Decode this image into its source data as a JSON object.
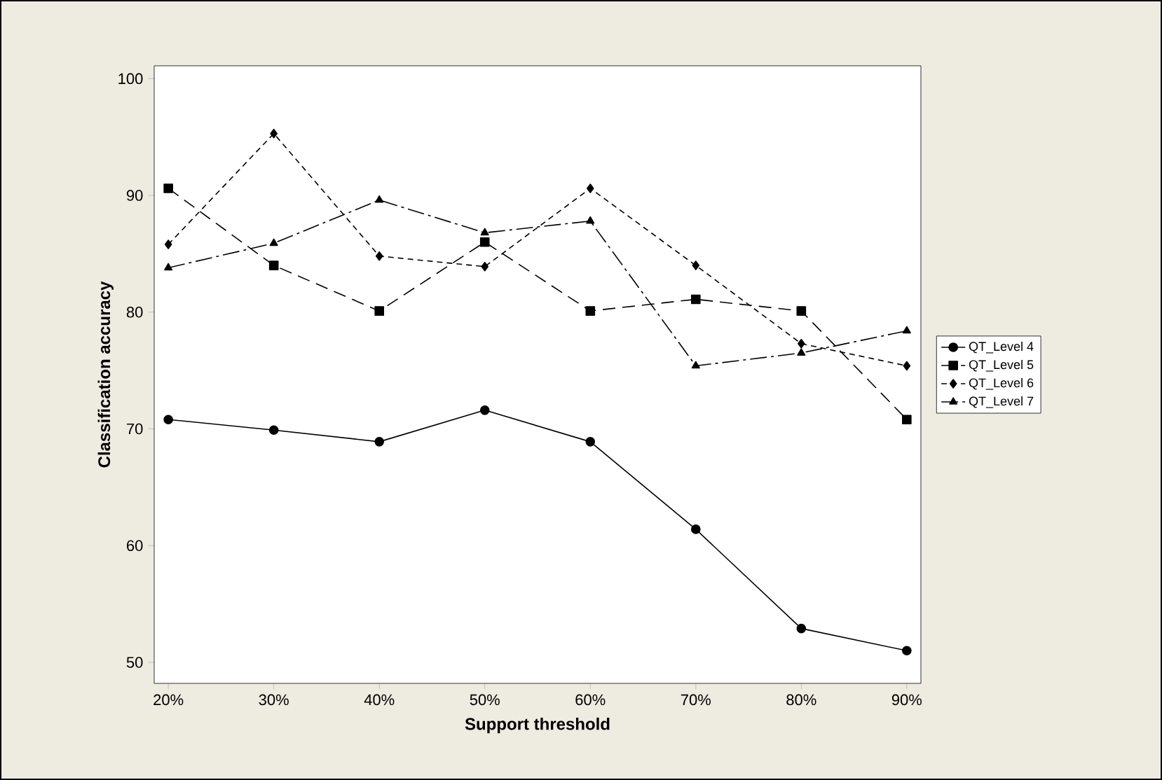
{
  "chart_data": {
    "type": "line",
    "xlabel": "Support threshold",
    "ylabel": "Classification accuracy",
    "categories": [
      "20%",
      "30%",
      "40%",
      "50%",
      "60%",
      "70%",
      "80%",
      "90%"
    ],
    "ylim": [
      48.2,
      101.1
    ],
    "yticks": [
      50,
      60,
      70,
      80,
      90,
      100
    ],
    "legend": "right",
    "grid": false,
    "series": [
      {
        "name": "QT_Level 4",
        "color": "#000000",
        "marker": "circle",
        "line_style": "solid",
        "values": [
          70.8,
          69.9,
          68.9,
          71.6,
          68.9,
          61.4,
          52.9,
          51.0
        ]
      },
      {
        "name": "QT_Level 5",
        "color": "#000000",
        "marker": "square",
        "line_style": "dashed",
        "values": [
          90.6,
          84.0,
          80.1,
          86.0,
          80.1,
          81.1,
          80.1,
          70.8
        ]
      },
      {
        "name": "QT_Level 6",
        "color": "#000000",
        "marker": "diamond",
        "line_style": "dashed",
        "values": [
          85.8,
          95.3,
          84.8,
          83.9,
          90.6,
          84.0,
          77.3,
          75.4
        ]
      },
      {
        "name": "QT_Level 7",
        "color": "#000000",
        "marker": "triangle",
        "line_style": "dashed",
        "values": [
          83.8,
          85.9,
          89.6,
          86.8,
          87.8,
          75.4,
          76.5,
          78.4
        ]
      }
    ]
  }
}
